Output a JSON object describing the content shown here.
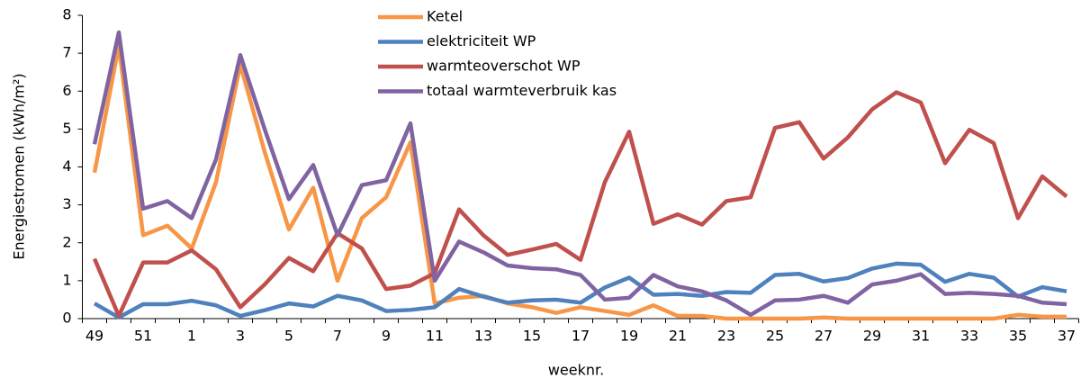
{
  "chart_data": {
    "type": "line",
    "y_label": "Energiestromen (kWh/m²)",
    "x_label": "weeknr.",
    "categories": [
      "49",
      null,
      "51",
      null,
      "1",
      null,
      "3",
      null,
      "5",
      null,
      "7",
      null,
      "9",
      null,
      "11",
      null,
      "13",
      null,
      "15",
      null,
      "17",
      null,
      "19",
      null,
      "21",
      null,
      "23",
      null,
      "25",
      null,
      "27",
      null,
      "29",
      null,
      "31",
      null,
      "33",
      null,
      "35",
      null,
      "37"
    ],
    "ylim": [
      0,
      8
    ],
    "yticks": [
      0,
      1,
      2,
      3,
      4,
      5,
      6,
      7,
      8
    ],
    "grid": false,
    "legend": "top",
    "series": [
      {
        "name": "Ketel",
        "color": "#f79646",
        "values": [
          3.85,
          7.2,
          2.2,
          2.45,
          1.85,
          3.6,
          6.7,
          4.4,
          2.35,
          3.45,
          1.0,
          2.65,
          3.2,
          4.65,
          0.4,
          0.55,
          0.6,
          0.4,
          0.3,
          0.15,
          0.3,
          0.2,
          0.1,
          0.35,
          0.07,
          0.07,
          0,
          0,
          0,
          0,
          0.03,
          0,
          0,
          0,
          0,
          0,
          0,
          0,
          0.1,
          0.05,
          0.05
        ]
      },
      {
        "name": "elektriciteit WP",
        "color": "#4f81bd",
        "values": [
          0.4,
          0.03,
          0.38,
          0.38,
          0.47,
          0.35,
          0.07,
          0.22,
          0.4,
          0.32,
          0.6,
          0.48,
          0.2,
          0.23,
          0.3,
          0.78,
          0.58,
          0.42,
          0.48,
          0.5,
          0.42,
          0.82,
          1.08,
          0.63,
          0.65,
          0.6,
          0.7,
          0.68,
          1.15,
          1.18,
          0.98,
          1.07,
          1.32,
          1.45,
          1.42,
          0.97,
          1.18,
          1.08,
          0.58,
          0.83,
          0.72
        ]
      },
      {
        "name": "warmteoverschot WP",
        "color": "#c0504d",
        "values": [
          1.58,
          0.07,
          1.48,
          1.48,
          1.8,
          1.3,
          0.3,
          0.9,
          1.6,
          1.25,
          2.25,
          1.85,
          0.78,
          0.87,
          1.2,
          2.88,
          2.2,
          1.68,
          1.82,
          1.97,
          1.55,
          3.6,
          4.93,
          2.5,
          2.75,
          2.48,
          3.1,
          3.2,
          5.03,
          5.18,
          4.22,
          4.78,
          5.52,
          5.97,
          5.7,
          4.1,
          4.98,
          4.63,
          2.65,
          3.75,
          3.22
        ]
      },
      {
        "name": "totaal warmteverbruik kas",
        "color": "#8064a2",
        "values": [
          4.6,
          7.55,
          2.9,
          3.1,
          2.65,
          4.2,
          6.95,
          5.0,
          3.15,
          4.05,
          2.2,
          3.52,
          3.65,
          5.15,
          1.0,
          2.03,
          1.75,
          1.4,
          1.33,
          1.3,
          1.15,
          0.5,
          0.55,
          1.15,
          0.85,
          0.72,
          0.48,
          0.1,
          0.48,
          0.5,
          0.6,
          0.42,
          0.9,
          1.0,
          1.17,
          0.65,
          0.68,
          0.65,
          0.6,
          0.42,
          0.38
        ]
      }
    ]
  }
}
